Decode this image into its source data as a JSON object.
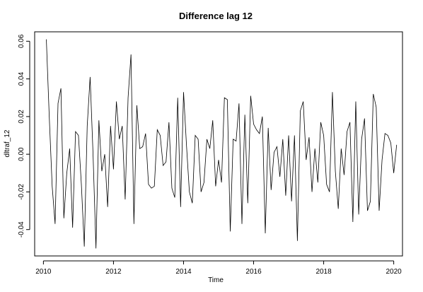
{
  "chart_data": {
    "type": "line",
    "title": "Difference lag 12",
    "xlabel": "Time",
    "ylabel": "dltraf_12",
    "xlim": [
      2009.75,
      2020.25
    ],
    "ylim": [
      -0.054,
      0.065
    ],
    "xticks": [
      2010,
      2012,
      2014,
      2016,
      2018,
      2020
    ],
    "xtick_labels": [
      "2010",
      "2012",
      "2014",
      "2016",
      "2018",
      "2020"
    ],
    "yticks": [
      -0.04,
      -0.02,
      0.0,
      0.02,
      0.04,
      0.06
    ],
    "ytick_labels": [
      "-0.04",
      "-0.02",
      "0.00",
      "0.02",
      "0.04",
      "0.06"
    ],
    "grid": false,
    "legend": "none",
    "series": [
      {
        "x_start": 2010.083333,
        "x_step": 0.083333,
        "values": [
          0.061,
          0.02,
          -0.017,
          -0.037,
          0.027,
          0.035,
          -0.034,
          -0.01,
          0.003,
          -0.039,
          0.012,
          0.01,
          -0.016,
          -0.049,
          0.015,
          0.041,
          0.0,
          -0.05,
          0.018,
          -0.009,
          0.0,
          -0.028,
          0.015,
          -0.008,
          0.028,
          0.008,
          0.015,
          -0.024,
          0.03,
          0.053,
          -0.037,
          0.026,
          0.003,
          0.004,
          0.011,
          -0.016,
          -0.018,
          -0.017,
          0.013,
          0.01,
          -0.006,
          -0.004,
          0.017,
          -0.018,
          -0.023,
          0.03,
          -0.028,
          0.033,
          0.005,
          -0.02,
          -0.026,
          0.01,
          0.008,
          -0.02,
          -0.015,
          0.008,
          0.003,
          0.018,
          -0.017,
          -0.003,
          -0.015,
          0.03,
          0.029,
          -0.041,
          0.008,
          0.007,
          0.027,
          -0.037,
          0.021,
          -0.026,
          0.031,
          0.016,
          0.013,
          0.011,
          0.02,
          -0.042,
          0.014,
          -0.019,
          0.001,
          0.004,
          -0.012,
          0.008,
          -0.022,
          0.01,
          -0.025,
          0.01,
          -0.046,
          0.023,
          0.028,
          -0.003,
          0.009,
          -0.02,
          0.003,
          -0.015,
          0.017,
          0.01,
          -0.016,
          -0.02,
          0.033,
          -0.009,
          -0.029,
          0.003,
          -0.011,
          0.012,
          0.017,
          -0.036,
          0.028,
          -0.032,
          0.008,
          0.019,
          -0.03,
          -0.025,
          0.032,
          0.025,
          -0.03,
          -0.003,
          0.011,
          0.01,
          0.006,
          -0.01,
          0.005
        ]
      }
    ]
  }
}
